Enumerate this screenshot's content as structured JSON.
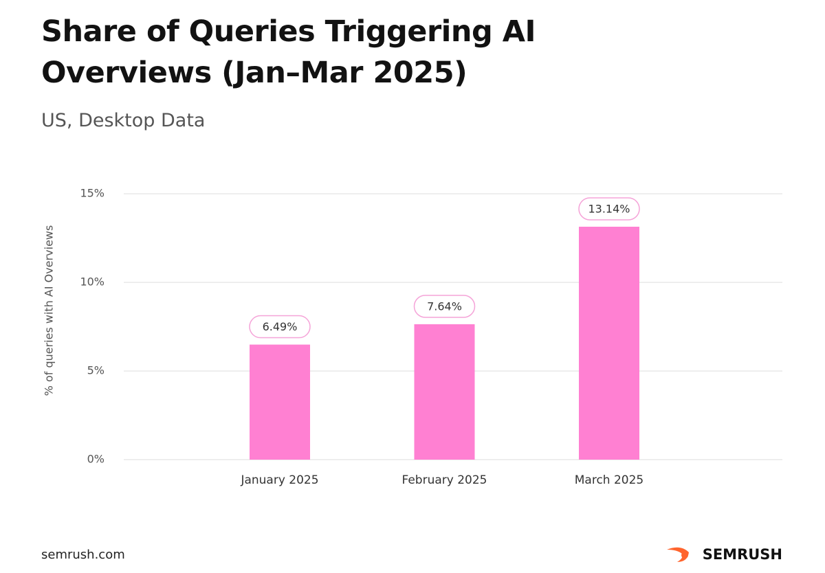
{
  "chart_data": {
    "type": "bar",
    "title": "Share of Queries Triggering AI Overviews (Jan–Mar 2025)",
    "subtitle": "US, Desktop Data",
    "y_label": "% of queries with AI Overviews",
    "categories": [
      "January 2025",
      "February 2025",
      "March 2025"
    ],
    "values": [
      6.49,
      7.64,
      13.14
    ],
    "value_labels": [
      "6.49%",
      "7.64%",
      "13.14%"
    ],
    "color": "#ff80d2",
    "ylim": [
      0,
      15
    ],
    "yticks": [
      {
        "value": 0,
        "label": "0%"
      },
      {
        "value": 5,
        "label": "5%"
      },
      {
        "value": 10,
        "label": "10%"
      },
      {
        "value": 15,
        "label": "15%"
      }
    ],
    "grid": true,
    "source": "semrush.com",
    "brand": "SEMRUSH"
  }
}
